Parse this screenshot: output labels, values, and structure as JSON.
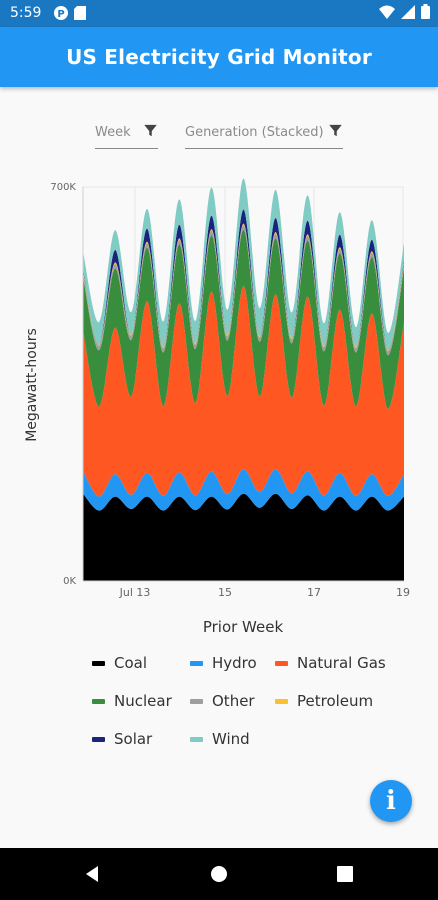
{
  "status_bar": {
    "time": "5:59",
    "icons": [
      "app-p-icon",
      "sim-card-icon",
      "wifi-icon",
      "signal-icon",
      "battery-icon"
    ]
  },
  "app_bar": {
    "title": "US Electricity Grid Monitor"
  },
  "filters": {
    "period": {
      "label": "Week",
      "icon": "filter-icon"
    },
    "view": {
      "label": "Generation (Stacked)",
      "icon": "filter-icon"
    }
  },
  "chart_data": {
    "type": "area",
    "stacked": true,
    "xlabel": "Prior Week",
    "ylabel": "Megawatt-hours",
    "x_ticks": [
      "Jul 13",
      "15",
      "17",
      "19"
    ],
    "y_ticks": [
      "0K",
      "700K"
    ],
    "ylim": [
      0,
      700000
    ],
    "grid": true,
    "series": [
      {
        "name": "Coal",
        "color": "#000000",
        "values": [
          155000,
          125000,
          150000,
          128000,
          150000,
          125000,
          150000,
          126000,
          150000,
          127000,
          155000,
          130000,
          155000,
          128000,
          152000,
          125000,
          150000,
          125000,
          150000,
          125000,
          150000
        ]
      },
      {
        "name": "Hydro",
        "color": "#2196f3",
        "values": [
          40000,
          25000,
          40000,
          25000,
          42000,
          26000,
          43000,
          26000,
          44000,
          27000,
          44000,
          28000,
          44000,
          28000,
          43000,
          27000,
          42000,
          26000,
          40000,
          26000,
          40000
        ]
      },
      {
        "name": "Natural Gas",
        "color": "#ff5722",
        "values": [
          250000,
          160000,
          260000,
          175000,
          305000,
          160000,
          300000,
          165000,
          320000,
          175000,
          325000,
          170000,
          310000,
          170000,
          310000,
          160000,
          290000,
          160000,
          285000,
          155000,
          270000
        ]
      },
      {
        "name": "Nuclear",
        "color": "#388e3c",
        "values": [
          95000,
          100000,
          105000,
          100000,
          95000,
          95000,
          105000,
          95000,
          100000,
          98000,
          100000,
          97000,
          100000,
          96000,
          100000,
          96000,
          100000,
          95000,
          100000,
          95000,
          95000
        ]
      },
      {
        "name": "Other",
        "color": "#9e9e9e",
        "values": [
          8000,
          8000,
          8000,
          8000,
          8000,
          8000,
          8000,
          8000,
          8000,
          8000,
          8000,
          8000,
          8000,
          8000,
          8000,
          8000,
          8000,
          8000,
          8000,
          8000,
          8000
        ]
      },
      {
        "name": "Petroleum",
        "color": "#fbc02d",
        "values": [
          3000,
          2000,
          3000,
          2000,
          3000,
          2000,
          3000,
          2000,
          3000,
          2000,
          3000,
          2000,
          3000,
          2000,
          3000,
          2000,
          3000,
          2000,
          3000,
          2000,
          3000
        ]
      },
      {
        "name": "Solar",
        "color": "#1a237e",
        "values": [
          4000,
          0,
          22000,
          0,
          23000,
          0,
          24000,
          0,
          24000,
          0,
          25000,
          0,
          25000,
          0,
          24000,
          0,
          22000,
          0,
          20000,
          0,
          4000
        ]
      },
      {
        "name": "Wind",
        "color": "#80cbc4",
        "values": [
          30000,
          40000,
          35000,
          40000,
          35000,
          45000,
          45000,
          40000,
          50000,
          45000,
          55000,
          50000,
          50000,
          45000,
          45000,
          40000,
          40000,
          35000,
          35000,
          30000,
          30000
        ]
      }
    ]
  },
  "fab": {
    "label": "i",
    "icon": "info-icon"
  },
  "nav_bar": {
    "icons": [
      "back-icon",
      "home-icon",
      "recents-icon"
    ]
  }
}
